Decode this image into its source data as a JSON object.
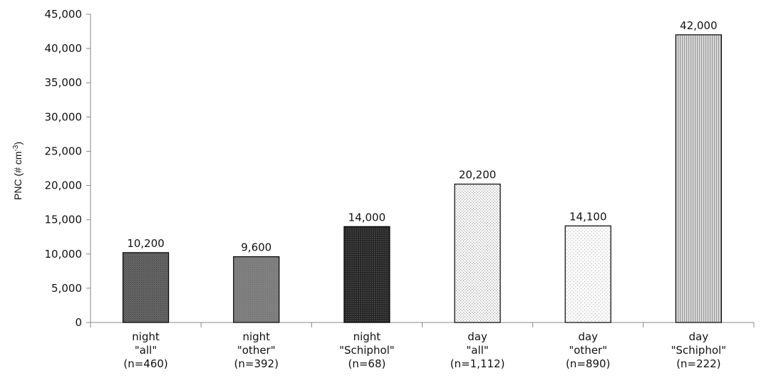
{
  "chart_data": {
    "type": "bar",
    "title": "",
    "xlabel": "",
    "ylabel": "PNC (# cm",
    "ylabel_superscript": "-3",
    "ylabel_suffix": ")",
    "ylim": [
      0,
      45000
    ],
    "yticks": [
      0,
      5000,
      10000,
      15000,
      20000,
      25000,
      30000,
      35000,
      40000,
      45000
    ],
    "ytick_labels": [
      "0",
      "5,000",
      "10,000",
      "15,000",
      "20,000",
      "25,000",
      "30,000",
      "35,000",
      "40,000",
      "45,000"
    ],
    "grid": false,
    "categories": [
      [
        "night",
        "\"all\"",
        "(n=460)"
      ],
      [
        "night",
        "\"other\"",
        "(n=392)"
      ],
      [
        "night",
        "\"Schiphol\"",
        "(n=68)"
      ],
      [
        "day",
        "\"all\"",
        "(n=1,112)"
      ],
      [
        "day",
        "\"other\"",
        "(n=890)"
      ],
      [
        "day",
        "\"Schiphol\"",
        "(n=222)"
      ]
    ],
    "values": [
      10200,
      9600,
      14000,
      20200,
      14100,
      42000
    ],
    "data_labels": [
      "10,200",
      "9,600",
      "14,000",
      "20,200",
      "14,100",
      "42,000"
    ],
    "bar_patterns": [
      "dark-dots",
      "gray-dots",
      "black-dots",
      "light-dots",
      "sparse-dots",
      "vertical-lines"
    ]
  }
}
